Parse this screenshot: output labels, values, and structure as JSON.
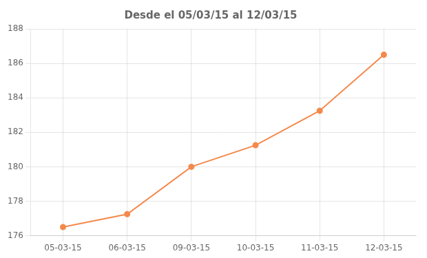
{
  "chart_data": {
    "type": "line",
    "title": "Desde el 05/03/15 al 12/03/15",
    "categories": [
      "05-03-15",
      "06-03-15",
      "09-03-15",
      "10-03-15",
      "11-03-15",
      "12-03-15"
    ],
    "values": [
      176.5,
      177.25,
      180.0,
      181.25,
      183.25,
      186.5
    ],
    "color": "#F4894B",
    "marker": "circle",
    "ylim": [
      176,
      188
    ],
    "yticks": [
      176,
      178,
      180,
      182,
      184,
      186,
      188
    ],
    "grid": true
  }
}
